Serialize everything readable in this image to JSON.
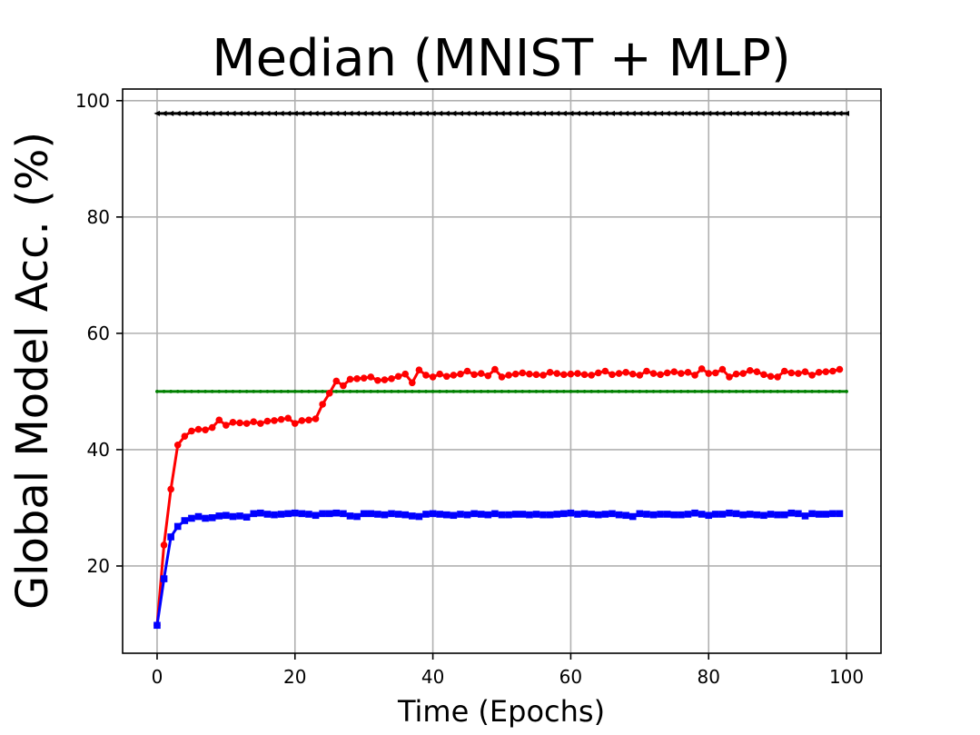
{
  "chart_data": {
    "type": "line",
    "title": "Median (MNIST + MLP)",
    "xlabel": "Time (Epochs)",
    "ylabel": "Global Model Acc. (%)",
    "xlim": [
      -5,
      105
    ],
    "ylim": [
      5,
      102
    ],
    "xticks": [
      0,
      20,
      40,
      60,
      80,
      100
    ],
    "yticks": [
      20,
      40,
      60,
      80,
      100
    ],
    "grid": true,
    "series": [
      {
        "color": "#000000",
        "marker": "triangle-left",
        "x": [
          0,
          100
        ],
        "constant": 97.8
      },
      {
        "color": "#008000",
        "marker": "dot",
        "x": [
          0,
          100
        ],
        "constant": 50.0
      },
      {
        "color": "#ff0000",
        "marker": "circle",
        "values": [
          9.8,
          23.6,
          33.2,
          40.8,
          42.3,
          43.2,
          43.5,
          43.4,
          43.8,
          45.1,
          44.2,
          44.7,
          44.6,
          44.5,
          44.8,
          44.5,
          44.9,
          45.0,
          45.2,
          45.4,
          44.5,
          45.0,
          45.1,
          45.3,
          47.8,
          49.7,
          51.8,
          51.0,
          52.1,
          52.2,
          52.3,
          52.5,
          51.9,
          52.0,
          52.2,
          52.6,
          53.0,
          51.5,
          53.7,
          52.8,
          52.5,
          53.0,
          52.6,
          52.8,
          53.0,
          53.5,
          52.9,
          53.1,
          52.7,
          53.8,
          52.5,
          52.8,
          53.0,
          53.2,
          53.0,
          52.9,
          52.8,
          53.3,
          53.1,
          52.9,
          53.0,
          53.1,
          52.9,
          52.8,
          53.2,
          53.5,
          52.9,
          53.1,
          53.3,
          53.0,
          52.8,
          53.5,
          53.1,
          52.9,
          53.2,
          53.4,
          53.1,
          53.3,
          52.8,
          53.9,
          53.1,
          53.2,
          53.8,
          52.5,
          53.0,
          53.1,
          53.6,
          53.4,
          52.9,
          52.6,
          52.5,
          53.5,
          53.2,
          53.1,
          53.4,
          52.8,
          53.3,
          53.4,
          53.5,
          53.8
        ]
      },
      {
        "color": "#0000ff",
        "marker": "square",
        "values": [
          9.8,
          17.8,
          25.0,
          26.8,
          27.8,
          28.2,
          28.5,
          28.2,
          28.3,
          28.6,
          28.7,
          28.5,
          28.6,
          28.4,
          29.0,
          29.1,
          28.9,
          28.8,
          28.9,
          29.0,
          29.1,
          29.0,
          28.9,
          28.7,
          29.0,
          29.0,
          29.1,
          29.0,
          28.6,
          28.5,
          29.0,
          29.0,
          28.9,
          28.8,
          29.0,
          28.9,
          28.8,
          28.6,
          28.5,
          28.9,
          29.0,
          28.9,
          28.8,
          28.7,
          28.9,
          28.8,
          29.0,
          28.9,
          28.8,
          29.0,
          28.8,
          28.8,
          28.9,
          28.9,
          28.8,
          28.9,
          28.8,
          28.8,
          28.9,
          29.0,
          29.1,
          28.9,
          29.0,
          28.9,
          28.8,
          28.9,
          29.0,
          28.8,
          28.7,
          28.5,
          29.0,
          28.9,
          28.8,
          28.9,
          28.9,
          28.8,
          28.8,
          28.9,
          29.1,
          28.9,
          28.7,
          28.9,
          28.9,
          29.1,
          29.0,
          28.8,
          28.9,
          28.8,
          28.7,
          28.9,
          28.8,
          28.8,
          29.1,
          29.0,
          28.6,
          29.0,
          28.9,
          28.9,
          29.0,
          29.0
        ]
      }
    ]
  }
}
